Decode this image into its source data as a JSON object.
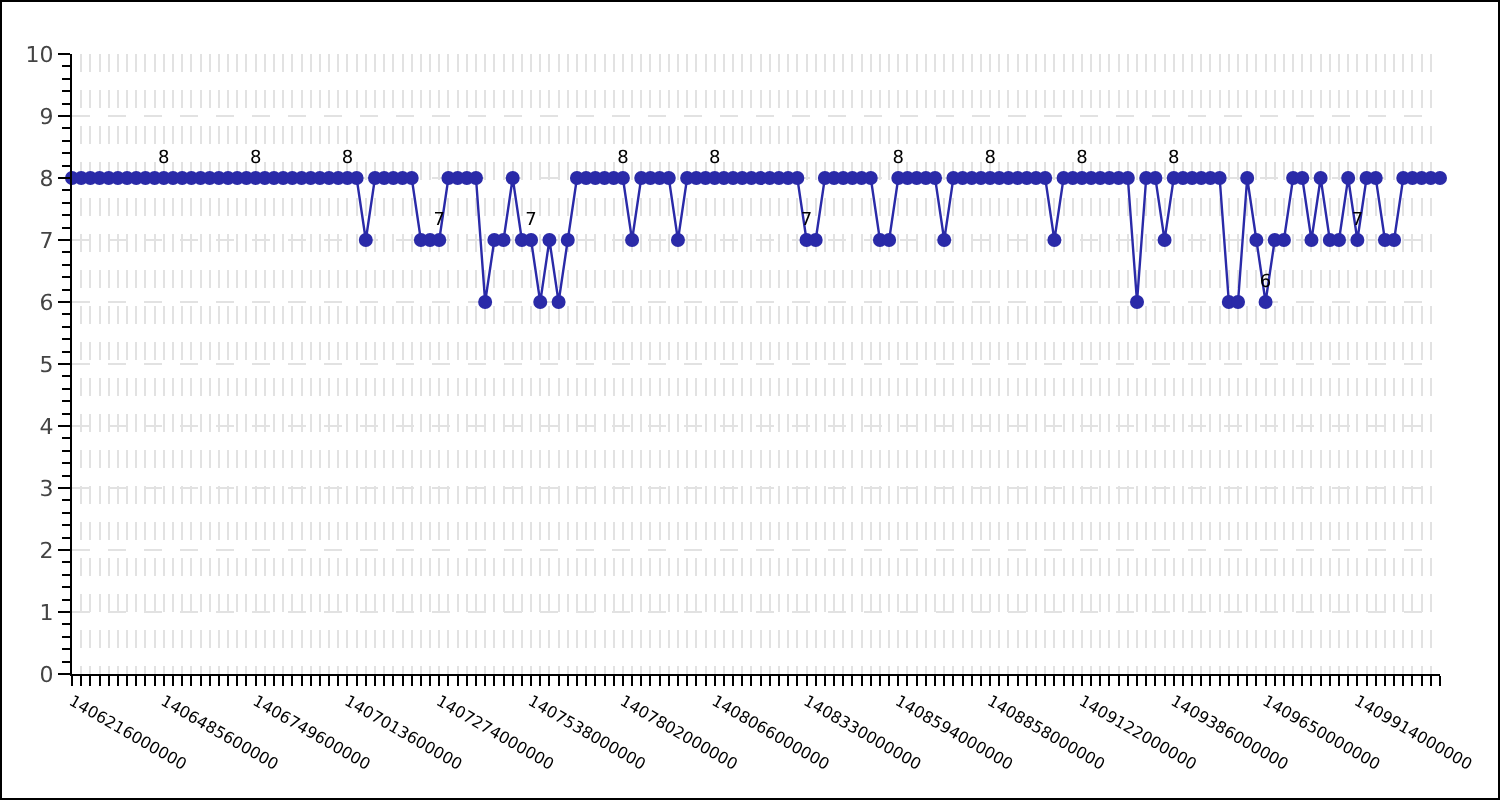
{
  "chart_data": {
    "type": "line",
    "categories": [
      "1406216000000",
      null,
      null,
      null,
      null,
      null,
      null,
      null,
      null,
      null,
      "1406485600000",
      null,
      null,
      null,
      null,
      null,
      null,
      null,
      null,
      null,
      "1406749600000",
      null,
      null,
      null,
      null,
      null,
      null,
      null,
      null,
      null,
      "1407013600000",
      null,
      null,
      null,
      null,
      null,
      null,
      null,
      null,
      null,
      "1407274000000",
      null,
      null,
      null,
      null,
      null,
      null,
      null,
      null,
      null,
      "1407538000000",
      null,
      null,
      null,
      null,
      null,
      null,
      null,
      null,
      null,
      "1407802000000",
      null,
      null,
      null,
      null,
      null,
      null,
      null,
      null,
      null,
      "1408066000000",
      null,
      null,
      null,
      null,
      null,
      null,
      null,
      null,
      null,
      "1408330000000",
      null,
      null,
      null,
      null,
      null,
      null,
      null,
      null,
      null,
      "1408594000000",
      null,
      null,
      null,
      null,
      null,
      null,
      null,
      null,
      null,
      "1408858000000",
      null,
      null,
      null,
      null,
      null,
      null,
      null,
      null,
      null,
      "1409122000000",
      null,
      null,
      null,
      null,
      null,
      null,
      null,
      null,
      null,
      "1409386000000",
      null,
      null,
      null,
      null,
      null,
      null,
      null,
      null,
      null,
      "1409650000000",
      null,
      null,
      null,
      null,
      null,
      null,
      null,
      null,
      null,
      "1409914000000",
      null,
      null,
      null,
      null,
      null,
      null,
      null,
      null,
      null
    ],
    "values": [
      8,
      8,
      8,
      8,
      8,
      8,
      8,
      8,
      8,
      8,
      8,
      8,
      8,
      8,
      8,
      8,
      8,
      8,
      8,
      8,
      8,
      8,
      8,
      8,
      8,
      8,
      8,
      8,
      8,
      8,
      8,
      8,
      7,
      8,
      8,
      8,
      8,
      8,
      7,
      7,
      7,
      8,
      8,
      8,
      8,
      6,
      7,
      7,
      8,
      7,
      7,
      6,
      7,
      6,
      7,
      8,
      8,
      8,
      8,
      8,
      8,
      7,
      8,
      8,
      8,
      8,
      7,
      8,
      8,
      8,
      8,
      8,
      8,
      8,
      8,
      8,
      8,
      8,
      8,
      8,
      7,
      7,
      8,
      8,
      8,
      8,
      8,
      8,
      7,
      7,
      8,
      8,
      8,
      8,
      8,
      7,
      8,
      8,
      8,
      8,
      8,
      8,
      8,
      8,
      8,
      8,
      8,
      7,
      8,
      8,
      8,
      8,
      8,
      8,
      8,
      8,
      6,
      8,
      8,
      7,
      8,
      8,
      8,
      8,
      8,
      8,
      6,
      6,
      8,
      7,
      6,
      7,
      7,
      8,
      8,
      7,
      8,
      7,
      7,
      8,
      7,
      8,
      8,
      7,
      7,
      8,
      8,
      8,
      8,
      8
    ],
    "value_labels": [
      null,
      null,
      null,
      null,
      null,
      null,
      null,
      null,
      null,
      null,
      "8",
      null,
      null,
      null,
      null,
      null,
      null,
      null,
      null,
      null,
      "8",
      null,
      null,
      null,
      null,
      null,
      null,
      null,
      null,
      null,
      "8",
      null,
      null,
      null,
      null,
      null,
      null,
      null,
      null,
      null,
      "7",
      null,
      null,
      null,
      null,
      null,
      null,
      null,
      null,
      null,
      "7",
      null,
      null,
      null,
      null,
      null,
      null,
      null,
      null,
      null,
      "8",
      null,
      null,
      null,
      null,
      null,
      null,
      null,
      null,
      null,
      "8",
      null,
      null,
      null,
      null,
      null,
      null,
      null,
      null,
      null,
      "7",
      null,
      null,
      null,
      null,
      null,
      null,
      null,
      null,
      null,
      "8",
      null,
      null,
      null,
      null,
      null,
      null,
      null,
      null,
      null,
      "8",
      null,
      null,
      null,
      null,
      null,
      null,
      null,
      null,
      null,
      "8",
      null,
      null,
      null,
      null,
      null,
      null,
      null,
      null,
      null,
      "8",
      null,
      null,
      null,
      null,
      null,
      null,
      null,
      null,
      null,
      "6",
      null,
      null,
      null,
      null,
      null,
      null,
      null,
      null,
      null,
      "7",
      null,
      null,
      null,
      null,
      null,
      null,
      null,
      null,
      null
    ],
    "color": "#2a2aa8",
    "marker": "circle",
    "grid": true,
    "ylim": [
      0,
      10
    ],
    "yticks": [
      0,
      {
        "value": 0.2,
        "label": null
      },
      {
        "value": 0.4,
        "label": null
      },
      {
        "value": 0.6,
        "label": null
      },
      {
        "value": 0.8,
        "label": null
      },
      1,
      {
        "value": 1.2,
        "label": null
      },
      {
        "value": 1.4,
        "label": null
      },
      {
        "value": 1.6,
        "label": null
      },
      {
        "value": 1.8,
        "label": null
      },
      2,
      {
        "value": 2.2,
        "label": null
      },
      {
        "value": 2.4,
        "label": null
      },
      {
        "value": 2.6,
        "label": null
      },
      {
        "value": 2.8,
        "label": null
      },
      3,
      {
        "value": 3.2,
        "label": null
      },
      {
        "value": 3.4,
        "label": null
      },
      {
        "value": 3.6,
        "label": null
      },
      {
        "value": 3.8,
        "label": null
      },
      4,
      {
        "value": 4.2,
        "label": null
      },
      {
        "value": 4.4,
        "label": null
      },
      {
        "value": 4.6,
        "label": null
      },
      {
        "value": 4.8,
        "label": null
      },
      5,
      {
        "value": 5.2,
        "label": null
      },
      {
        "value": 5.4,
        "label": null
      },
      {
        "value": 5.6,
        "label": null
      },
      {
        "value": 5.8,
        "label": null
      },
      6,
      {
        "value": 6.2,
        "label": null
      },
      {
        "value": 6.4,
        "label": null
      },
      {
        "value": 6.6,
        "label": null
      },
      {
        "value": 6.8,
        "label": null
      },
      7,
      {
        "value": 7.2,
        "label": null
      },
      {
        "value": 7.4,
        "label": null
      },
      {
        "value": 7.6,
        "label": null
      },
      {
        "value": 7.8,
        "label": null
      },
      8,
      {
        "value": 8.2,
        "label": null
      },
      {
        "value": 8.4,
        "label": null
      },
      {
        "value": 8.6,
        "label": null
      },
      {
        "value": 8.8,
        "label": null
      },
      9,
      {
        "value": 9.2,
        "label": null
      },
      {
        "value": 9.4,
        "label": null
      },
      {
        "value": 9.6,
        "label": null
      },
      {
        "value": 9.8,
        "label": null
      },
      10
    ]
  }
}
